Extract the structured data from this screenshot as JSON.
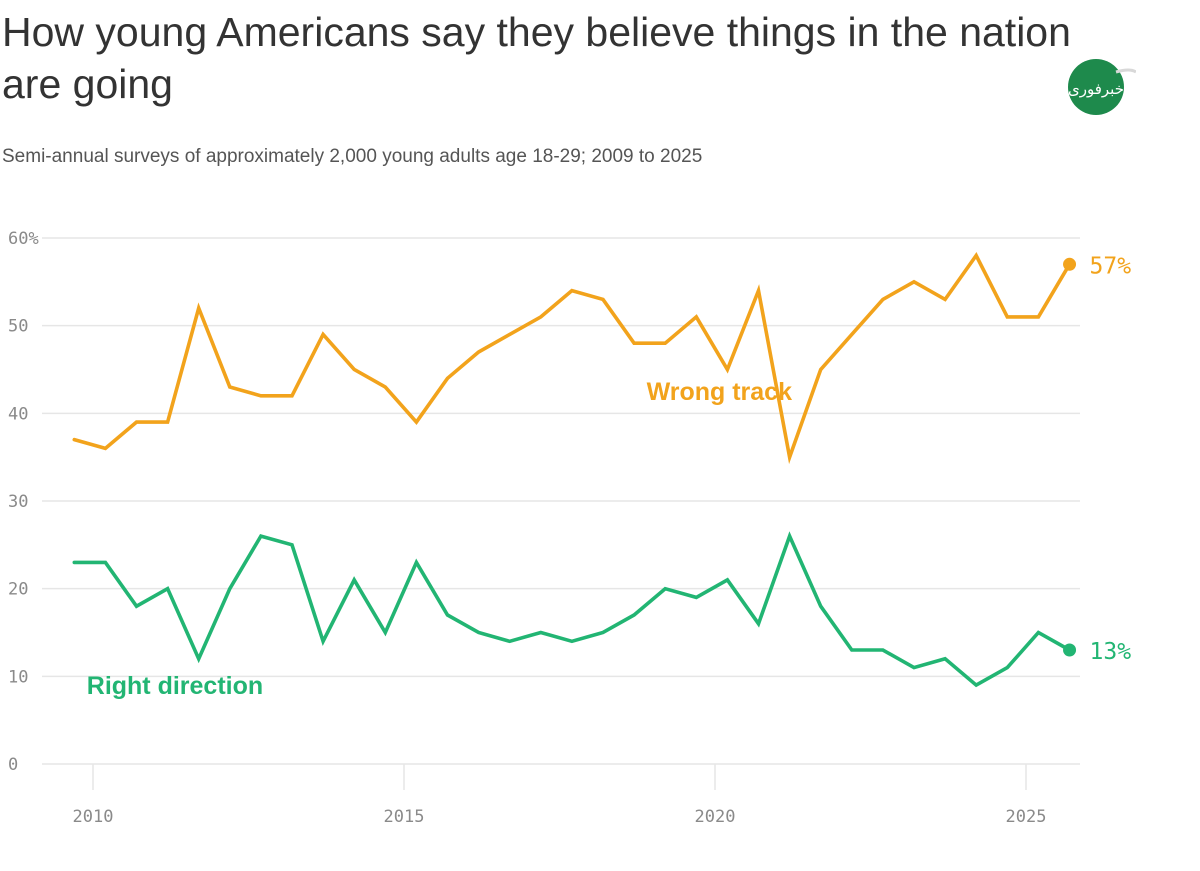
{
  "header": {
    "title": "How young Americans say they believe things in the nation are going",
    "subtitle": "Semi-annual surveys of approximately 2,000 young adults age 18-29; 2009 to 2025"
  },
  "colors": {
    "wrong_track": "#f2a31c",
    "right_direction": "#22b573",
    "grid": "#e6e6e6",
    "logo": "#1e8a4c"
  },
  "logo": {
    "icon": "green-circle-logo",
    "text": "خبرفوری"
  },
  "chart_data": {
    "type": "line",
    "title": "How young Americans say they believe things in the nation are going",
    "subtitle": "Semi-annual surveys of approximately 2,000 young adults age 18-29; 2009 to 2025",
    "xlabel": "",
    "ylabel": "",
    "xlim": [
      2009.3,
      2026.2
    ],
    "ylim": [
      0,
      60
    ],
    "grid": true,
    "y_ticks": [
      0,
      10,
      20,
      30,
      40,
      50,
      60
    ],
    "y_tick_labels": [
      "0",
      "10",
      "20",
      "30",
      "40",
      "50",
      "60%"
    ],
    "x_ticks": [
      2010,
      2015,
      2020,
      2025
    ],
    "x_tick_labels": [
      "2010",
      "2015",
      "2020",
      "2025"
    ],
    "x": [
      2009.7,
      2010.2,
      2010.7,
      2011.2,
      2011.7,
      2012.2,
      2012.7,
      2013.2,
      2013.7,
      2014.2,
      2014.7,
      2015.2,
      2015.7,
      2016.2,
      2016.7,
      2017.2,
      2017.7,
      2018.2,
      2018.7,
      2019.2,
      2019.7,
      2020.2,
      2020.7,
      2021.2,
      2021.7,
      2022.2,
      2022.7,
      2023.2,
      2023.7,
      2024.2,
      2024.7,
      2025.2,
      2025.7
    ],
    "series": [
      {
        "name": "Wrong track",
        "color_key": "wrong_track",
        "end_label": "57%",
        "values": [
          37,
          36,
          39,
          39,
          52,
          43,
          42,
          42,
          49,
          45,
          43,
          39,
          44,
          47,
          49,
          51,
          54,
          53,
          48,
          48,
          51,
          45,
          54,
          35,
          45,
          49,
          53,
          55,
          53,
          58,
          51,
          51,
          57
        ]
      },
      {
        "name": "Right direction",
        "color_key": "right_direction",
        "end_label": "13%",
        "values": [
          23,
          23,
          18,
          20,
          12,
          20,
          26,
          25,
          14,
          21,
          15,
          23,
          17,
          15,
          14,
          15,
          14,
          15,
          17,
          20,
          19,
          21,
          16,
          26,
          18,
          13,
          13,
          11,
          12,
          9,
          11,
          15,
          13
        ]
      }
    ]
  }
}
